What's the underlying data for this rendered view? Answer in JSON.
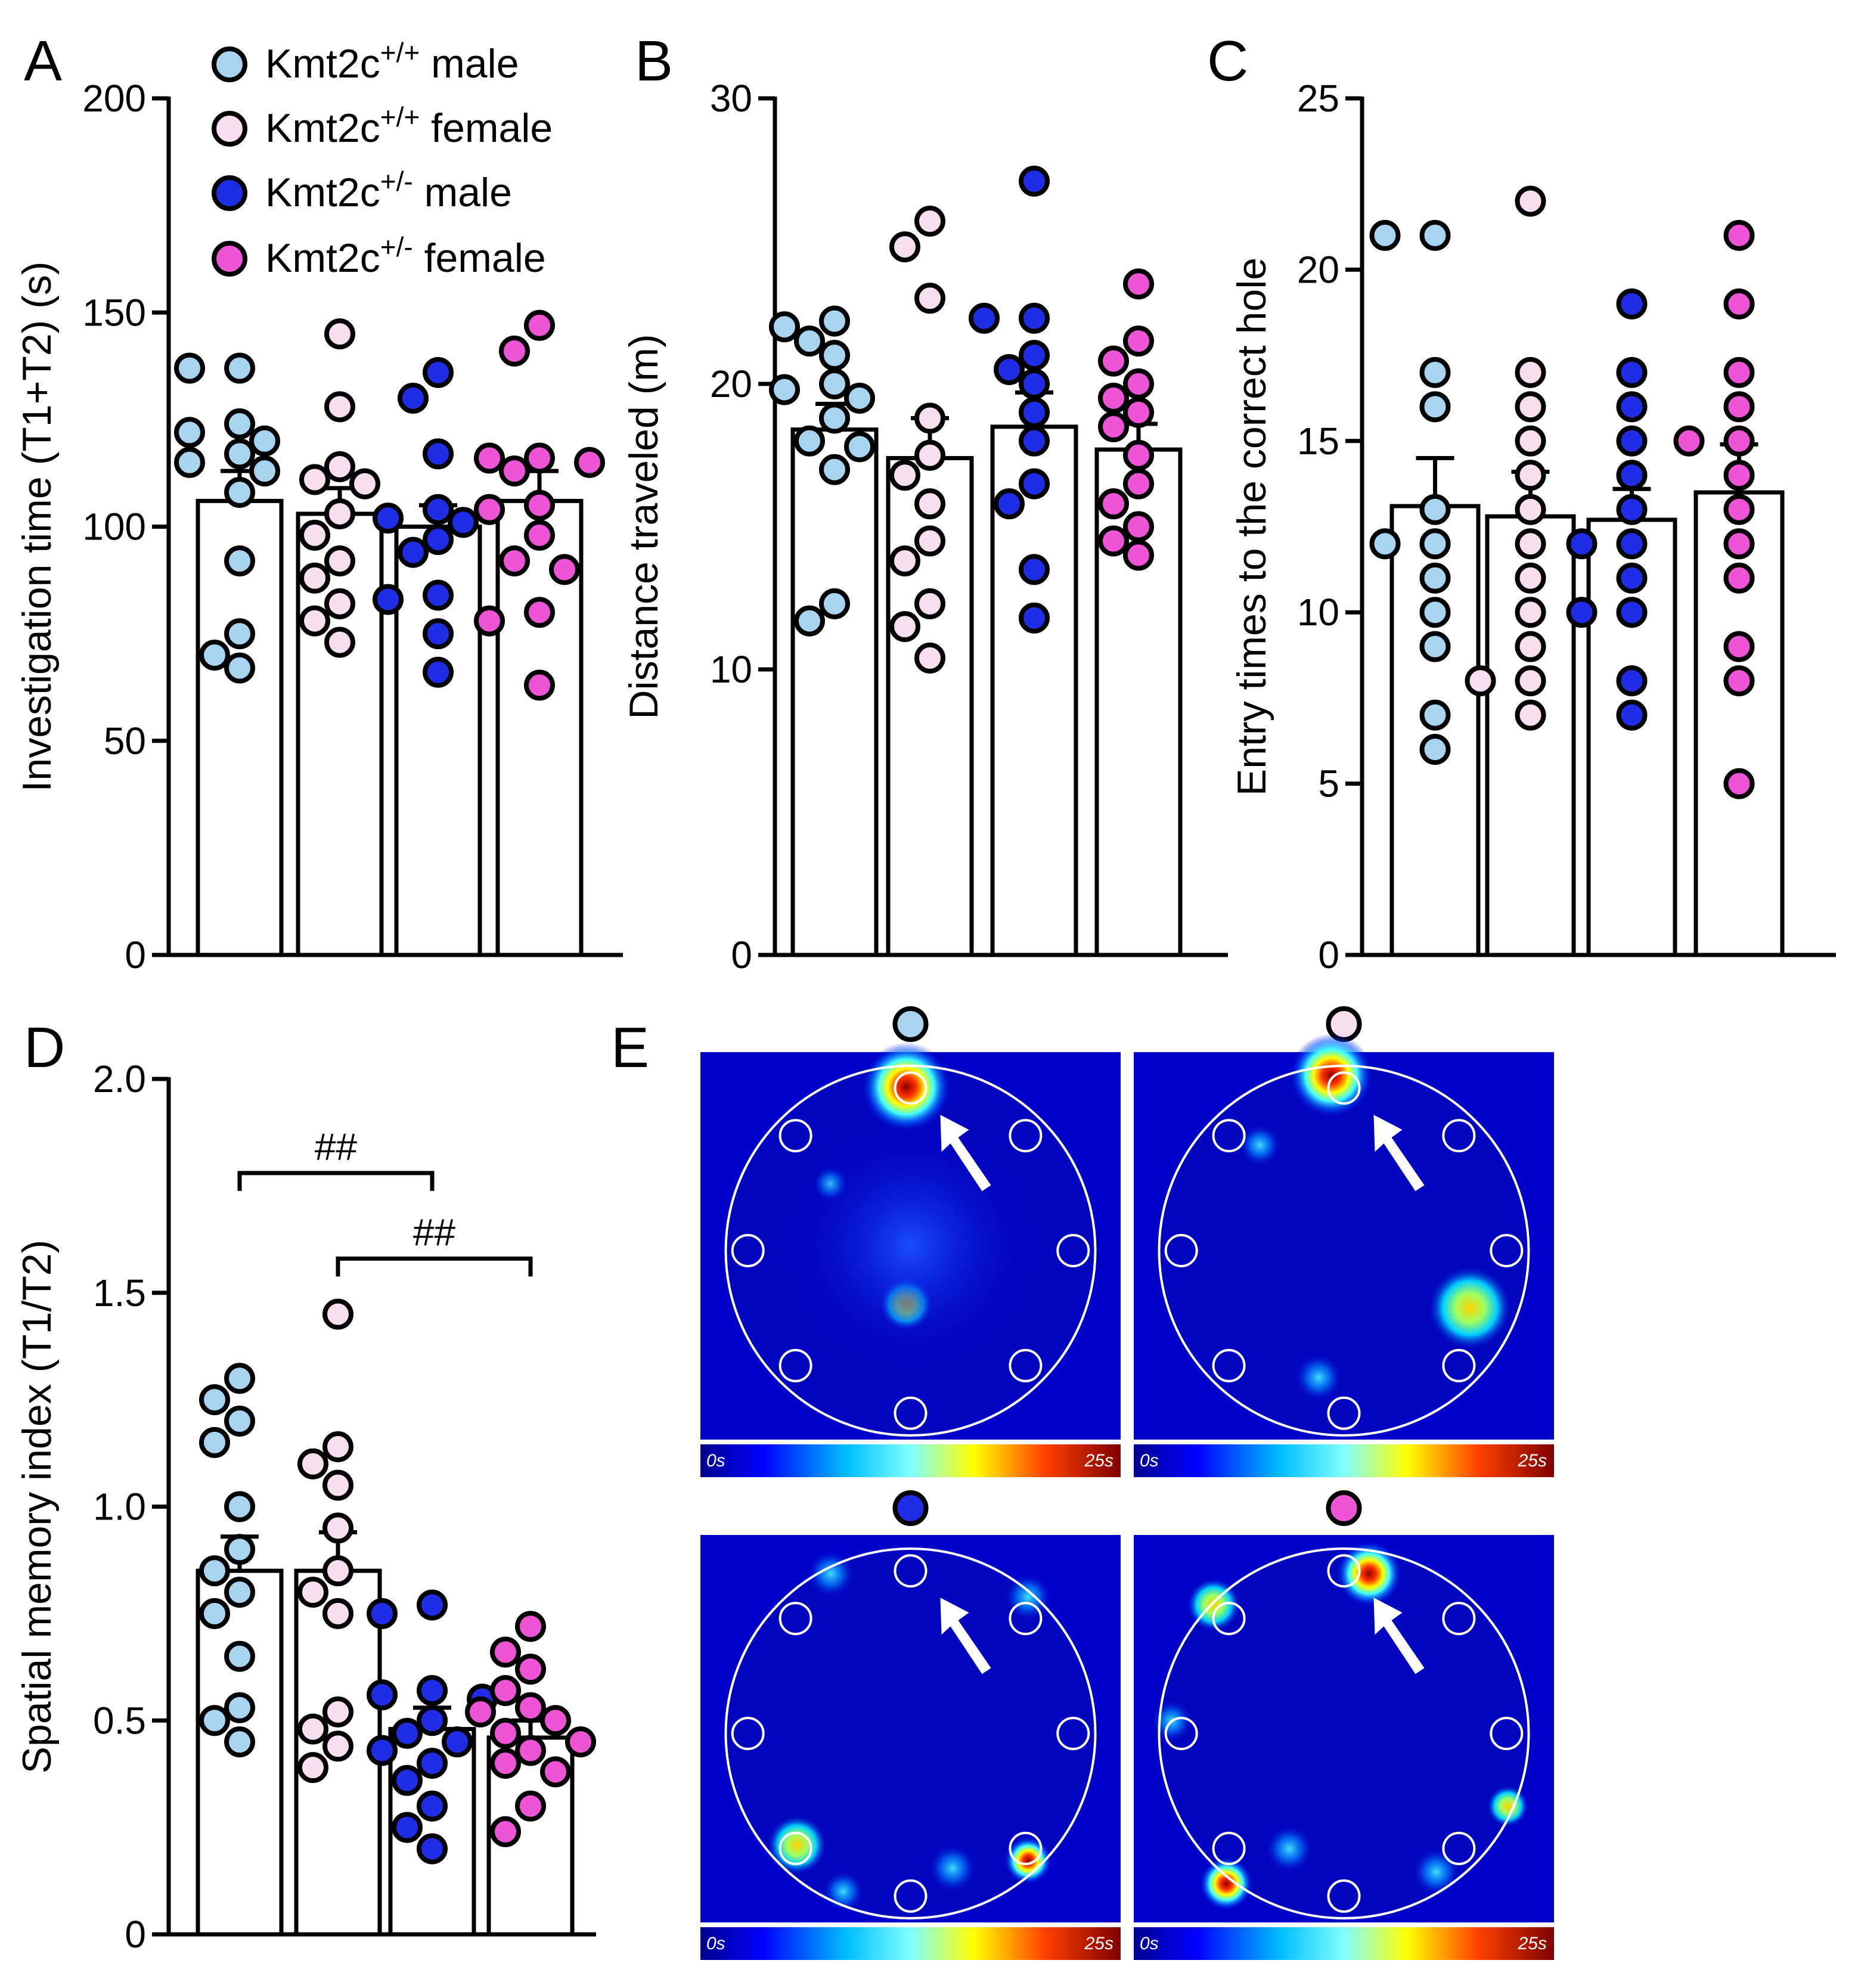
{
  "panel_letters": [
    "A",
    "B",
    "C",
    "D",
    "E"
  ],
  "legend": [
    {
      "base": "Kmt2c",
      "sup": "+/+",
      "rest": " male",
      "color": "#a8d4f0"
    },
    {
      "base": "Kmt2c",
      "sup": "+/+",
      "rest": " female",
      "color": "#f7dff0"
    },
    {
      "base": "Kmt2c",
      "sup": "+/-",
      "rest": " male",
      "color": "#1f2de6"
    },
    {
      "base": "Kmt2c",
      "sup": "+/-",
      "rest": " female",
      "color": "#ee55d6"
    }
  ],
  "colors": {
    "wt_male": "#a8d4f0",
    "wt_female": "#f7dff0",
    "het_male": "#1f2de6",
    "het_female": "#ee55d6"
  },
  "chart_data": [
    {
      "panel": "A",
      "type": "bar",
      "ylabel": "Investigation time (T1+T2) (s)",
      "ylim": [
        0,
        200
      ],
      "yticks": [
        "0",
        "50",
        "100",
        "150",
        "200"
      ],
      "yticks_values": [
        0,
        50,
        100,
        150,
        200
      ],
      "groups": [
        "Kmt2c+/+ male",
        "Kmt2c+/+ female",
        "Kmt2c+/- male",
        "Kmt2c+/- female"
      ],
      "means": [
        106,
        103,
        100,
        106
      ],
      "sem": [
        7,
        6,
        5,
        7
      ],
      "points": [
        [
          137,
          137,
          124,
          122,
          120,
          117,
          115,
          113,
          108,
          92,
          75,
          70,
          67
        ],
        [
          145,
          128,
          114,
          111,
          110,
          103,
          98,
          92,
          88,
          82,
          78,
          73
        ],
        [
          136,
          130,
          117,
          104,
          102,
          101,
          100,
          97,
          94,
          84,
          83,
          75,
          66
        ],
        [
          147,
          141,
          116,
          116,
          115,
          113,
          105,
          104,
          98,
          92,
          90,
          80,
          78,
          63
        ]
      ]
    },
    {
      "panel": "B",
      "type": "bar",
      "ylabel": "Distance traveled (m)",
      "ylim": [
        0,
        30
      ],
      "yticks": [
        "0",
        "10",
        "20",
        "30"
      ],
      "yticks_values": [
        0,
        10,
        20,
        30
      ],
      "groups": [
        "Kmt2c+/+ male",
        "Kmt2c+/+ female",
        "Kmt2c+/- male",
        "Kmt2c+/- female"
      ],
      "means": [
        18.4,
        17.4,
        18.5,
        17.7
      ],
      "sem": [
        0.9,
        1.4,
        1.2,
        0.9
      ],
      "points": [
        [
          22.2,
          22.0,
          21.5,
          21.0,
          20.0,
          19.8,
          19.5,
          18.8,
          18.0,
          17.8,
          17.0,
          12.3,
          11.7
        ],
        [
          25.7,
          24.8,
          23.0,
          18.8,
          17.5,
          16.8,
          15.8,
          14.5,
          13.8,
          12.3,
          11.5,
          10.4
        ],
        [
          27.1,
          22.3,
          22.3,
          21.0,
          20.5,
          20.0,
          19.0,
          18.0,
          16.5,
          15.8,
          13.5,
          11.8
        ],
        [
          23.5,
          21.5,
          20.8,
          20.0,
          19.5,
          19.0,
          18.5,
          17.5,
          16.5,
          15.8,
          15.0,
          14.5,
          14.0
        ]
      ]
    },
    {
      "panel": "C",
      "type": "bar",
      "ylabel": "Entry times to the correct hole",
      "ylim": [
        0,
        25
      ],
      "yticks": [
        "0",
        "5",
        "10",
        "15",
        "20",
        "25"
      ],
      "yticks_values": [
        0,
        5,
        10,
        15,
        20,
        25
      ],
      "groups": [
        "Kmt2c+/+ male",
        "Kmt2c+/+ female",
        "Kmt2c+/- male",
        "Kmt2c+/- female"
      ],
      "means": [
        13.1,
        12.8,
        12.7,
        13.5
      ],
      "sem": [
        1.4,
        1.3,
        0.9,
        1.4
      ],
      "points": [
        [
          21,
          21,
          17,
          16,
          13,
          12,
          12,
          11,
          10,
          9,
          7,
          6
        ],
        [
          22,
          17,
          16,
          15,
          14,
          13,
          12,
          11,
          10,
          9,
          8,
          8,
          7
        ],
        [
          19,
          17,
          16,
          15,
          14,
          13,
          12,
          12,
          11,
          10,
          10,
          8,
          7
        ],
        [
          21,
          19,
          17,
          16,
          15,
          15,
          14,
          13,
          12,
          11,
          9,
          8,
          5
        ]
      ]
    },
    {
      "panel": "D",
      "type": "bar",
      "ylabel": "Spatial memory index (T1/T2)",
      "ylim": [
        0,
        2.0
      ],
      "yticks": [
        "0",
        "0.5",
        "1.0",
        "1.5",
        "2.0"
      ],
      "yticks_values": [
        0,
        0.5,
        1.0,
        1.5,
        2.0
      ],
      "groups": [
        "Kmt2c+/+ male",
        "Kmt2c+/+ female",
        "Kmt2c+/- male",
        "Kmt2c+/- female"
      ],
      "means": [
        0.85,
        0.85,
        0.48,
        0.46
      ],
      "sem": [
        0.08,
        0.09,
        0.05,
        0.04
      ],
      "points": [
        [
          1.3,
          1.25,
          1.2,
          1.15,
          1.0,
          0.9,
          0.85,
          0.8,
          0.75,
          0.65,
          0.53,
          0.5,
          0.45
        ],
        [
          1.45,
          1.14,
          1.1,
          1.05,
          0.95,
          0.85,
          0.8,
          0.75,
          0.52,
          0.48,
          0.44,
          0.39
        ],
        [
          0.77,
          0.75,
          0.57,
          0.56,
          0.55,
          0.5,
          0.47,
          0.45,
          0.43,
          0.4,
          0.36,
          0.3,
          0.25,
          0.2
        ],
        [
          0.72,
          0.66,
          0.62,
          0.57,
          0.53,
          0.52,
          0.5,
          0.47,
          0.45,
          0.43,
          0.4,
          0.38,
          0.3,
          0.24
        ]
      ],
      "significance": [
        {
          "label": "##",
          "from_group": 0,
          "to_group": 2,
          "y": 1.78
        },
        {
          "label": "##",
          "from_group": 1,
          "to_group": 3,
          "y": 1.58
        }
      ]
    }
  ],
  "heatmaps": {
    "colorbar_min_label": "0s",
    "colorbar_max_label": "25s",
    "maps": [
      {
        "group": "Kmt2c+/+ male",
        "color": "#a8d4f0"
      },
      {
        "group": "Kmt2c+/+ female",
        "color": "#f7dff0"
      },
      {
        "group": "Kmt2c+/- male",
        "color": "#1f2de6"
      },
      {
        "group": "Kmt2c+/- female",
        "color": "#ee55d6"
      }
    ]
  }
}
